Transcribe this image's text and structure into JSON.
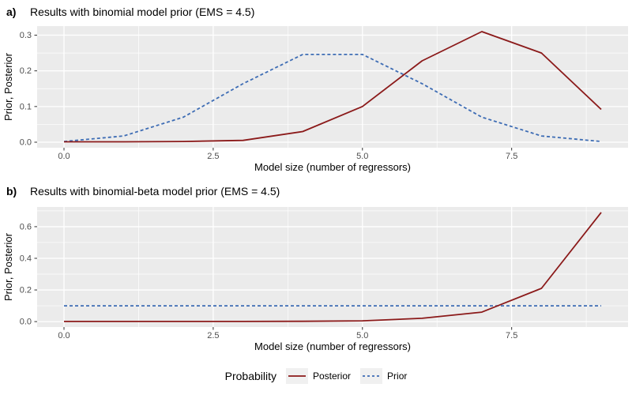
{
  "figure": {
    "panel_background": "#EBEBEB",
    "gridline_color": "#FFFFFF",
    "tick_label_color": "#4D4D4D",
    "legend": {
      "title": "Probability",
      "entries": [
        {
          "label": "Posterior",
          "line": "solid",
          "color": "#8B1A1A"
        },
        {
          "label": "Prior",
          "line": "dashed",
          "color": "#3D6CB4"
        }
      ]
    }
  },
  "chart_data": [
    {
      "type": "line",
      "tag": "a)",
      "title": "Results with binomial model prior (EMS = 4.5)",
      "xlabel": "Model size (number of regressors)",
      "ylabel": "Prior, Posterior",
      "x": [
        0,
        1,
        2,
        3,
        4,
        5,
        6,
        7,
        8,
        9
      ],
      "series": [
        {
          "name": "Prior",
          "style": "dashed",
          "color": "#3D6CB4",
          "values": [
            0.002,
            0.0176,
            0.0703,
            0.1641,
            0.2461,
            0.2461,
            0.1641,
            0.0703,
            0.0176,
            0.002
          ]
        },
        {
          "name": "Posterior",
          "style": "solid",
          "color": "#8B1A1A",
          "values": [
            0.001,
            0.001,
            0.002,
            0.005,
            0.03,
            0.1,
            0.228,
            0.31,
            0.25,
            0.092
          ]
        }
      ],
      "xlim": [
        0,
        9
      ],
      "ylim": [
        0,
        0.31
      ],
      "grid": true,
      "x_major": [
        0,
        2.5,
        5,
        7.5
      ],
      "x_minor": [
        1.25,
        3.75,
        6.25,
        8.75
      ],
      "y_major": [
        0,
        0.1,
        0.2,
        0.3
      ],
      "y_minor": [
        0.05,
        0.15,
        0.25
      ],
      "x_tick_labels": [
        "0.0",
        "2.5",
        "5.0",
        "7.5"
      ],
      "y_tick_labels": [
        "0.0",
        "0.1",
        "0.2",
        "0.3"
      ]
    },
    {
      "type": "line",
      "tag": "b)",
      "title": "Results with binomial-beta model prior (EMS = 4.5)",
      "xlabel": "Model size (number of regressors)",
      "ylabel": "Prior, Posterior",
      "x": [
        0,
        1,
        2,
        3,
        4,
        5,
        6,
        7,
        8,
        9
      ],
      "series": [
        {
          "name": "Prior",
          "style": "dashed",
          "color": "#3D6CB4",
          "values": [
            0.1,
            0.1,
            0.1,
            0.1,
            0.1,
            0.1,
            0.1,
            0.1,
            0.1,
            0.1
          ]
        },
        {
          "name": "Posterior",
          "style": "solid",
          "color": "#8B1A1A",
          "values": [
            0.001,
            0.001,
            0.001,
            0.001,
            0.002,
            0.005,
            0.021,
            0.06,
            0.21,
            0.69
          ]
        }
      ],
      "xlim": [
        0,
        9
      ],
      "ylim": [
        0,
        0.69
      ],
      "grid": true,
      "x_major": [
        0,
        2.5,
        5,
        7.5
      ],
      "x_minor": [
        1.25,
        3.75,
        6.25,
        8.75
      ],
      "y_major": [
        0,
        0.2,
        0.4,
        0.6
      ],
      "y_minor": [
        0.1,
        0.3,
        0.5,
        0.7
      ],
      "x_tick_labels": [
        "0.0",
        "2.5",
        "5.0",
        "7.5"
      ],
      "y_tick_labels": [
        "0.0",
        "0.2",
        "0.4",
        "0.6"
      ]
    }
  ]
}
